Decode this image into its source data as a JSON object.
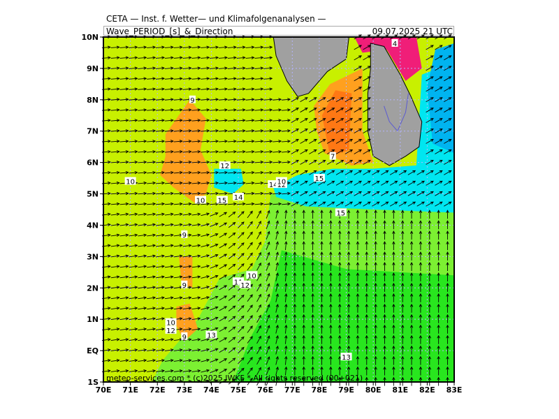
{
  "header": {
    "title": "CETA — Inst. f. Wetter— und Klimafolgenanalysen —",
    "parameter": "Wave_PERIOD_[s]_&_Direction",
    "valid_time": "09.07.2025  21  UTC"
  },
  "footer": {
    "copyright": "meteo-services.com * (c)2025 IWKF * All rights reserved (00+021)"
  },
  "axes": {
    "lon_labels": [
      "70E",
      "71E",
      "72E",
      "73E",
      "74E",
      "75E",
      "76E",
      "77E",
      "78E",
      "79E",
      "80E",
      "81E",
      "82E",
      "83E"
    ],
    "lat_labels": [
      "10N",
      "9N",
      "8N",
      "7N",
      "6N",
      "5N",
      "4N",
      "3N",
      "2N",
      "1N",
      "EQ",
      "1S"
    ]
  },
  "colors": {
    "yellow_green": "#c8f000",
    "green_light": "#7cf032",
    "green": "#28e61e",
    "cyan": "#00e6f0",
    "orange": "#ffa01e",
    "orange_dark": "#ff7814",
    "magenta": "#f01e78",
    "sky": "#00b4f0",
    "land": "#a0a0a0",
    "grid": "#b4b4ff"
  },
  "contour_labels": [
    {
      "text": "9",
      "lon": 73.3,
      "lat": 8.0
    },
    {
      "text": "10",
      "lon": 71.0,
      "lat": 5.4
    },
    {
      "text": "12",
      "lon": 74.5,
      "lat": 5.9
    },
    {
      "text": "10",
      "lon": 73.6,
      "lat": 4.8
    },
    {
      "text": "15",
      "lon": 74.4,
      "lat": 4.8
    },
    {
      "text": "14",
      "lon": 75.0,
      "lat": 4.9
    },
    {
      "text": "14",
      "lon": 76.3,
      "lat": 5.3
    },
    {
      "text": "12",
      "lon": 76.6,
      "lat": 5.3
    },
    {
      "text": "10",
      "lon": 76.6,
      "lat": 5.4
    },
    {
      "text": "15",
      "lon": 78.0,
      "lat": 5.5
    },
    {
      "text": "15",
      "lon": 78.8,
      "lat": 4.4
    },
    {
      "text": "7",
      "lon": 78.5,
      "lat": 6.2
    },
    {
      "text": "4",
      "lon": 80.8,
      "lat": 9.8
    },
    {
      "text": "9",
      "lon": 73.0,
      "lat": 3.7
    },
    {
      "text": "9",
      "lon": 73.0,
      "lat": 2.1
    },
    {
      "text": "11",
      "lon": 75.0,
      "lat": 2.2
    },
    {
      "text": "12",
      "lon": 75.25,
      "lat": 2.1
    },
    {
      "text": "10",
      "lon": 75.5,
      "lat": 2.4
    },
    {
      "text": "10",
      "lon": 72.5,
      "lat": 0.9
    },
    {
      "text": "12",
      "lon": 72.5,
      "lat": 0.65
    },
    {
      "text": "9",
      "lon": 73.0,
      "lat": 0.45
    },
    {
      "text": "13",
      "lon": 74.0,
      "lat": 0.5
    },
    {
      "text": "13",
      "lon": 79.0,
      "lat": -0.2
    }
  ]
}
